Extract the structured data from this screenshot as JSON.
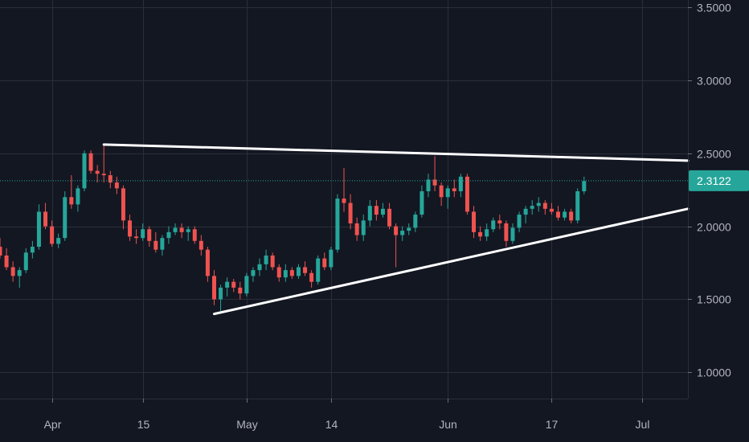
{
  "chart_data": {
    "type": "candlestick",
    "colors": {
      "background": "#131722",
      "grid": "#2a2e39",
      "up": "#26a69a",
      "down": "#ef5350",
      "trendline": "#ffffff",
      "axis_text": "#b2b5be",
      "last_price_tag": "#26a69a"
    },
    "ylim": [
      0.82,
      3.55
    ],
    "y_ticks": [
      "1.0000",
      "1.5000",
      "2.0000",
      "2.5000",
      "3.0000",
      "3.5000"
    ],
    "y_tick_values": [
      1.0,
      1.5,
      2.0,
      2.5,
      3.0,
      3.5
    ],
    "x_ticks": [
      {
        "label": "Apr",
        "date": "2019-04-01"
      },
      {
        "label": "15",
        "date": "2019-04-15"
      },
      {
        "label": "May",
        "date": "2019-05-01"
      },
      {
        "label": "14",
        "date": "2019-05-14"
      },
      {
        "label": "Jun",
        "date": "2019-06-01"
      },
      {
        "label": "17",
        "date": "2019-06-17"
      },
      {
        "label": "Jul",
        "date": "2019-07-01"
      }
    ],
    "xlim": [
      "2019-03-24",
      "2019-07-08"
    ],
    "last_price": "2.3122",
    "candles": [
      [
        "2019-03-24",
        1.86,
        1.92,
        1.78,
        1.8
      ],
      [
        "2019-03-25",
        1.8,
        1.85,
        1.7,
        1.72
      ],
      [
        "2019-03-26",
        1.72,
        1.76,
        1.62,
        1.66
      ],
      [
        "2019-03-27",
        1.66,
        1.72,
        1.58,
        1.7
      ],
      [
        "2019-03-28",
        1.7,
        1.85,
        1.68,
        1.82
      ],
      [
        "2019-03-29",
        1.82,
        1.9,
        1.78,
        1.86
      ],
      [
        "2019-03-30",
        1.86,
        2.15,
        1.84,
        2.1
      ],
      [
        "2019-03-31",
        2.1,
        2.16,
        1.98,
        2.0
      ],
      [
        "2019-04-01",
        2.0,
        2.04,
        1.86,
        1.88
      ],
      [
        "2019-04-02",
        1.88,
        1.95,
        1.85,
        1.92
      ],
      [
        "2019-04-03",
        1.92,
        2.24,
        1.9,
        2.2
      ],
      [
        "2019-04-04",
        2.2,
        2.35,
        2.12,
        2.15
      ],
      [
        "2019-04-05",
        2.15,
        2.28,
        2.1,
        2.26
      ],
      [
        "2019-04-06",
        2.26,
        2.52,
        2.24,
        2.5
      ],
      [
        "2019-04-07",
        2.5,
        2.52,
        2.36,
        2.38
      ],
      [
        "2019-04-08",
        2.38,
        2.42,
        2.3,
        2.36
      ],
      [
        "2019-04-09",
        2.36,
        2.56,
        2.3,
        2.35
      ],
      [
        "2019-04-10",
        2.35,
        2.38,
        2.26,
        2.3
      ],
      [
        "2019-04-11",
        2.3,
        2.34,
        2.22,
        2.26
      ],
      [
        "2019-04-12",
        2.26,
        2.28,
        1.98,
        2.04
      ],
      [
        "2019-04-13",
        2.04,
        2.08,
        1.9,
        1.93
      ],
      [
        "2019-04-14",
        1.93,
        1.98,
        1.88,
        1.92
      ],
      [
        "2019-04-15",
        1.92,
        2.02,
        1.9,
        1.98
      ],
      [
        "2019-04-16",
        1.98,
        2.0,
        1.86,
        1.9
      ],
      [
        "2019-04-17",
        1.9,
        1.96,
        1.82,
        1.84
      ],
      [
        "2019-04-18",
        1.84,
        1.94,
        1.8,
        1.92
      ],
      [
        "2019-04-19",
        1.92,
        2.0,
        1.88,
        1.96
      ],
      [
        "2019-04-20",
        1.96,
        2.02,
        1.94,
        1.99
      ],
      [
        "2019-04-21",
        1.99,
        2.02,
        1.92,
        1.96
      ],
      [
        "2019-04-22",
        1.96,
        2.0,
        1.9,
        1.98
      ],
      [
        "2019-04-23",
        1.98,
        2.0,
        1.88,
        1.9
      ],
      [
        "2019-04-24",
        1.9,
        1.94,
        1.8,
        1.84
      ],
      [
        "2019-04-25",
        1.84,
        1.86,
        1.62,
        1.66
      ],
      [
        "2019-04-26",
        1.66,
        1.7,
        1.46,
        1.5
      ],
      [
        "2019-04-27",
        1.5,
        1.6,
        1.42,
        1.58
      ],
      [
        "2019-04-28",
        1.58,
        1.65,
        1.52,
        1.62
      ],
      [
        "2019-04-29",
        1.62,
        1.64,
        1.55,
        1.58
      ],
      [
        "2019-04-30",
        1.58,
        1.62,
        1.5,
        1.54
      ],
      [
        "2019-05-01",
        1.54,
        1.68,
        1.52,
        1.66
      ],
      [
        "2019-05-02",
        1.66,
        1.72,
        1.62,
        1.7
      ],
      [
        "2019-05-03",
        1.7,
        1.78,
        1.66,
        1.74
      ],
      [
        "2019-05-04",
        1.74,
        1.84,
        1.7,
        1.8
      ],
      [
        "2019-05-05",
        1.8,
        1.82,
        1.7,
        1.72
      ],
      [
        "2019-05-06",
        1.72,
        1.74,
        1.62,
        1.65
      ],
      [
        "2019-05-07",
        1.65,
        1.74,
        1.62,
        1.7
      ],
      [
        "2019-05-08",
        1.7,
        1.72,
        1.64,
        1.66
      ],
      [
        "2019-05-09",
        1.66,
        1.74,
        1.64,
        1.72
      ],
      [
        "2019-05-10",
        1.72,
        1.76,
        1.66,
        1.68
      ],
      [
        "2019-05-11",
        1.68,
        1.7,
        1.58,
        1.62
      ],
      [
        "2019-05-12",
        1.62,
        1.8,
        1.6,
        1.78
      ],
      [
        "2019-05-13",
        1.78,
        1.82,
        1.7,
        1.72
      ],
      [
        "2019-05-14",
        1.72,
        1.86,
        1.7,
        1.84
      ],
      [
        "2019-05-15",
        1.84,
        2.22,
        1.82,
        2.19
      ],
      [
        "2019-05-16",
        2.19,
        2.4,
        2.1,
        2.16
      ],
      [
        "2019-05-17",
        2.16,
        2.22,
        1.98,
        2.02
      ],
      [
        "2019-05-18",
        2.02,
        2.06,
        1.9,
        1.94
      ],
      [
        "2019-05-19",
        1.94,
        2.08,
        1.9,
        2.04
      ],
      [
        "2019-05-20",
        2.04,
        2.18,
        2.0,
        2.14
      ],
      [
        "2019-05-21",
        2.14,
        2.18,
        2.04,
        2.08
      ],
      [
        "2019-05-22",
        2.08,
        2.16,
        2.06,
        2.12
      ],
      [
        "2019-05-23",
        2.12,
        2.16,
        1.98,
        2.0
      ],
      [
        "2019-05-24",
        2.0,
        2.02,
        1.72,
        1.94
      ],
      [
        "2019-05-25",
        1.94,
        2.0,
        1.9,
        1.97
      ],
      [
        "2019-05-26",
        1.97,
        2.02,
        1.94,
        1.99
      ],
      [
        "2019-05-27",
        1.99,
        2.1,
        1.96,
        2.08
      ],
      [
        "2019-05-28",
        2.08,
        2.28,
        2.06,
        2.24
      ],
      [
        "2019-05-29",
        2.24,
        2.36,
        2.2,
        2.32
      ],
      [
        "2019-05-30",
        2.32,
        2.48,
        2.24,
        2.28
      ],
      [
        "2019-05-31",
        2.28,
        2.3,
        2.14,
        2.2
      ],
      [
        "2019-06-01",
        2.2,
        2.28,
        2.12,
        2.26
      ],
      [
        "2019-06-02",
        2.26,
        2.32,
        2.2,
        2.24
      ],
      [
        "2019-06-03",
        2.24,
        2.36,
        2.2,
        2.34
      ],
      [
        "2019-06-04",
        2.34,
        2.36,
        2.08,
        2.1
      ],
      [
        "2019-06-05",
        2.1,
        2.14,
        1.92,
        1.96
      ],
      [
        "2019-06-06",
        1.96,
        2.0,
        1.9,
        1.93
      ],
      [
        "2019-06-07",
        1.93,
        2.02,
        1.9,
        1.98
      ],
      [
        "2019-06-08",
        1.98,
        2.06,
        1.96,
        2.04
      ],
      [
        "2019-06-09",
        2.04,
        2.08,
        1.98,
        2.02
      ],
      [
        "2019-06-10",
        2.02,
        2.04,
        1.86,
        1.9
      ],
      [
        "2019-06-11",
        1.9,
        2.02,
        1.88,
        1.99
      ],
      [
        "2019-06-12",
        1.99,
        2.1,
        1.96,
        2.08
      ],
      [
        "2019-06-13",
        2.08,
        2.14,
        2.02,
        2.12
      ],
      [
        "2019-06-14",
        2.12,
        2.18,
        2.08,
        2.14
      ],
      [
        "2019-06-15",
        2.14,
        2.2,
        2.1,
        2.16
      ],
      [
        "2019-06-16",
        2.16,
        2.18,
        2.08,
        2.12
      ],
      [
        "2019-06-17",
        2.12,
        2.16,
        2.08,
        2.1
      ],
      [
        "2019-06-18",
        2.1,
        2.14,
        2.04,
        2.06
      ],
      [
        "2019-06-19",
        2.06,
        2.12,
        2.04,
        2.1
      ],
      [
        "2019-06-20",
        2.1,
        2.12,
        2.02,
        2.04
      ],
      [
        "2019-06-21",
        2.04,
        2.26,
        2.02,
        2.24
      ],
      [
        "2019-06-22",
        2.24,
        2.34,
        2.22,
        2.31
      ]
    ],
    "trendlines": [
      {
        "from": [
          "2019-04-09",
          2.56
        ],
        "to": [
          "2019-07-08",
          2.45
        ]
      },
      {
        "from": [
          "2019-04-26",
          1.4
        ],
        "to": [
          "2019-07-08",
          2.12
        ]
      }
    ]
  }
}
